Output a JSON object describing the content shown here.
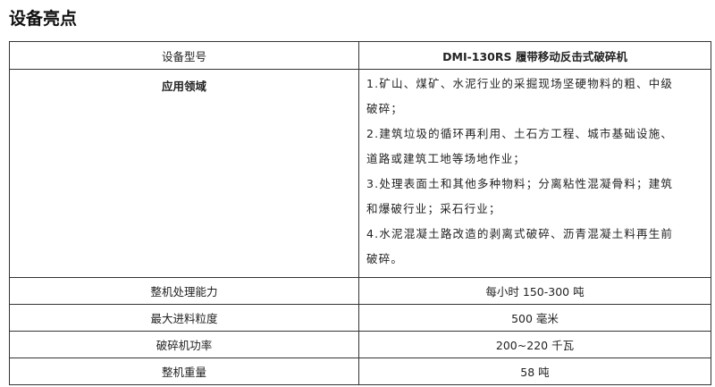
{
  "title": "设备亮点",
  "table": {
    "header": {
      "label": "设备型号",
      "value": "DMI-130RS 履带移动反击式破碎机"
    },
    "application": {
      "label": "应用领域",
      "lines": [
        "1.矿山、煤矿、水泥行业的采掘现场坚硬物料的粗、中级",
        "破碎；",
        "2.建筑垃圾的循环再利用、土石方工程、城市基础设施、",
        "道路或建筑工地等场地作业；",
        "3.处理表面土和其他多种物料；分离粘性混凝骨料；建筑",
        "和爆破行业；采石行业；",
        "4.水泥混凝土路改造的剥离式破碎、沥青混凝土料再生前",
        "破碎。"
      ]
    },
    "rows": [
      {
        "label": "整机处理能力",
        "value": "每小时 150-300 吨"
      },
      {
        "label": "最大进料粒度",
        "value": "500 毫米"
      },
      {
        "label": "破碎机功率",
        "value": "200~220 千瓦"
      },
      {
        "label": "整机重量",
        "value": "58 吨"
      }
    ]
  }
}
